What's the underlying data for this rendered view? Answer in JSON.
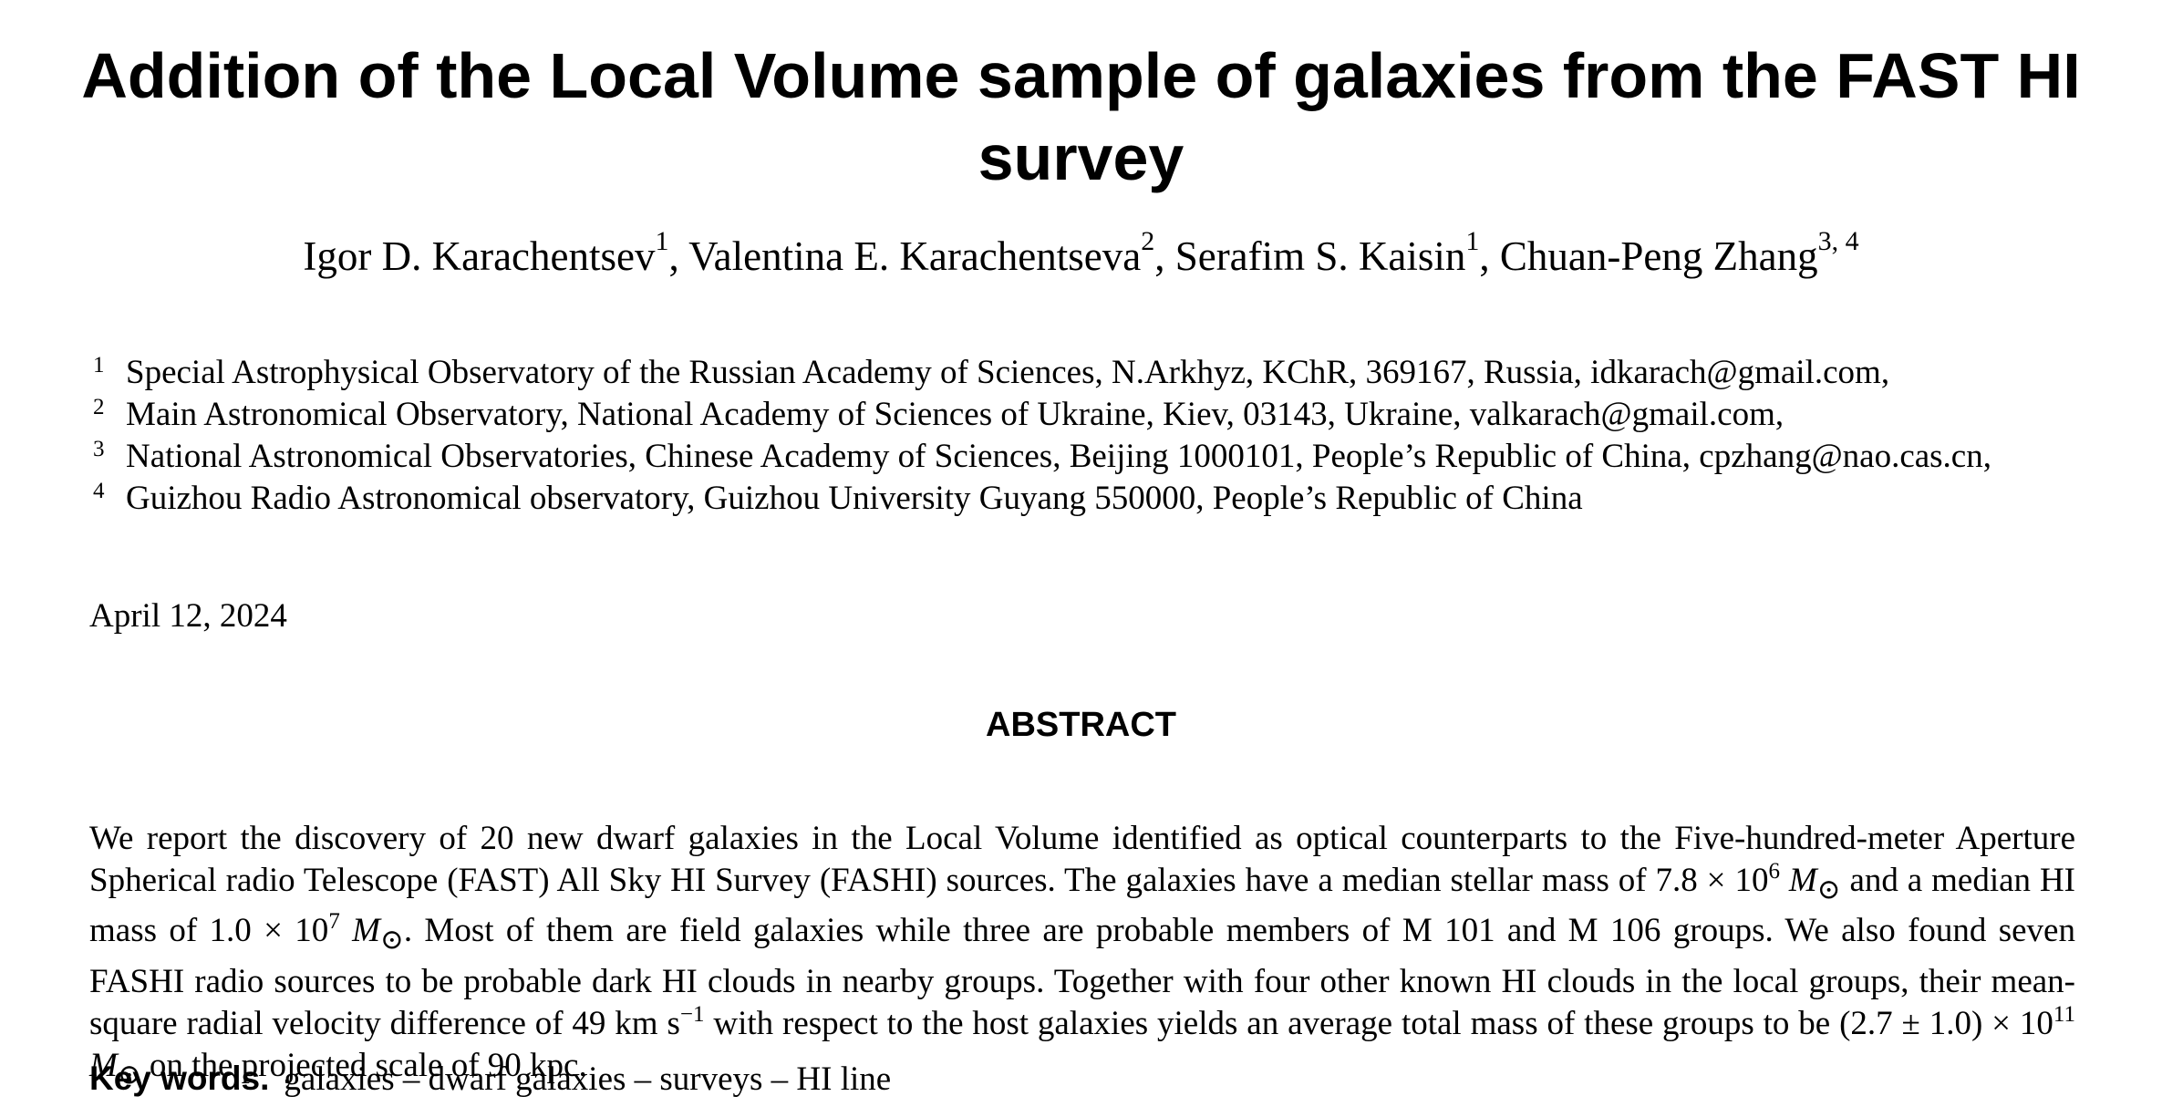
{
  "title": "Addition of the Local Volume sample of galaxies from the FAST HI survey",
  "authors": [
    {
      "name": "Igor D. Karachentsev",
      "aff": "1",
      "sep": ", "
    },
    {
      "name": "Valentina E. Karachentseva",
      "aff": "2",
      "sep": ", "
    },
    {
      "name": "Serafim S. Kaisin",
      "aff": "1",
      "sep": ", "
    },
    {
      "name": "Chuan-Peng Zhang",
      "aff": "3, 4",
      "sep": ""
    }
  ],
  "affiliations": [
    {
      "num": "1",
      "text": "Special Astrophysical Observatory of the Russian Academy of Sciences, N.Arkhyz, KChR, 369167, Russia, idkarach@gmail.com,"
    },
    {
      "num": "2",
      "text": "Main Astronomical Observatory, National Academy of Sciences of Ukraine, Kiev, 03143, Ukraine, valkarach@gmail.com,"
    },
    {
      "num": "3",
      "text": "National Astronomical Observatories, Chinese Academy of Sciences, Beijing 1000101, People’s Republic of China, cpzhang@nao.cas.cn,"
    },
    {
      "num": "4",
      "text": "Guizhou Radio Astronomical observatory, Guizhou University Guyang 550000, People’s Republic of China"
    }
  ],
  "date": "April 12, 2024",
  "abstract": {
    "heading": "ABSTRACT",
    "p1": "We report the discovery of 20 new dwarf galaxies in the Local Volume identified as optical counterparts to the Five-hundred-meter Aperture Spherical radio Telescope (FAST) All Sky HI Survey (FASHI) sources. The galaxies have a median stellar mass of 7.8 × 10",
    "exp1": "6",
    "msun1": "M",
    "sun_symbol": "⊙",
    "p2": " and a median HI mass of 1.0 × 10",
    "exp2": "7",
    "p3": ". Most of them are field galaxies while three are probable members of M 101 and M 106 groups. We also found seven FASHI radio sources to be probable dark HI clouds in nearby groups. Together with four other known HI clouds in the local groups, their mean-square radial velocity difference of 49 km s",
    "exp3": "−1",
    "p4": " with respect to the host galaxies yields an average total mass of these groups to be (2.7 ± 1.0) × 10",
    "exp4": "11",
    "p5": " on the projected scale of 90 kpc."
  },
  "keywords": {
    "label": "Key words.",
    "text": "galaxies – dwarf galaxies – surveys – HI line"
  }
}
